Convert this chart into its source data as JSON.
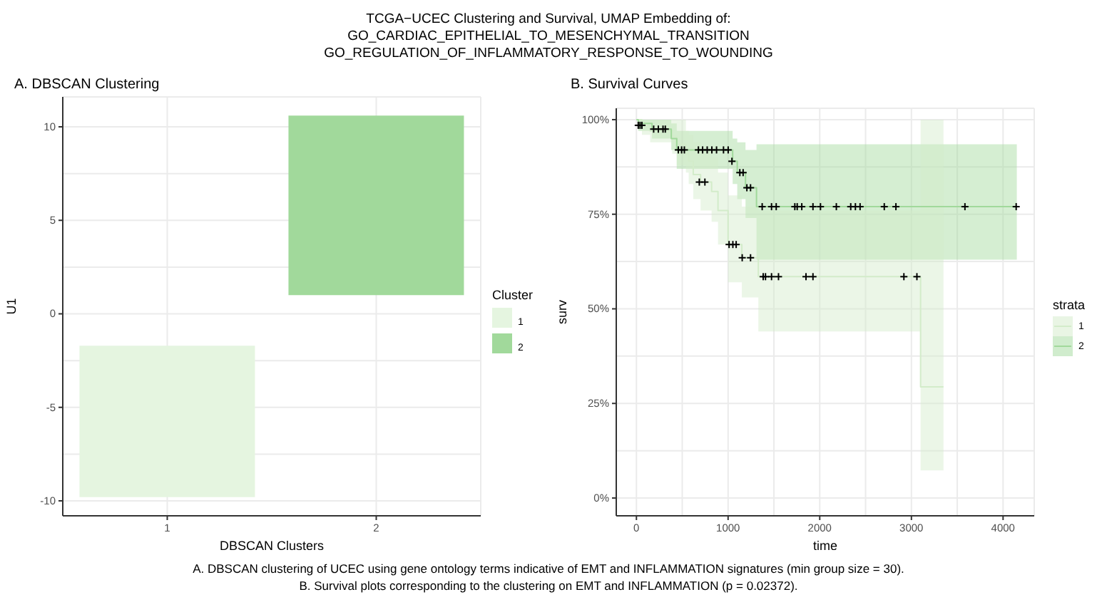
{
  "chart_data": [
    {
      "type": "bar",
      "title": "TCGA−UCEC Clustering and Survival, UMAP Embedding of:\nGO_CARDIAC_EPITHELIAL_TO_MESENCHYMAL_TRANSITION\nGO_REGULATION_OF_INFLAMMATORY_RESPONSE_TO_WOUNDING",
      "subtitle": "A. DBSCAN Clustering",
      "xlabel": "DBSCAN Clusters",
      "ylabel": "U1",
      "legend_title": "Cluster",
      "legend": "right",
      "grid": true,
      "annotations": [
        "A. DBSCAN clustering of UCEC using gene ontology terms indicative of EMT and INFLAMMATION signatures (min group size = 30).",
        "B. Survival plots corresponding to the clustering on EMT and INFLAMMATION (p = 0.02372)."
      ],
      "categories": [
        "1",
        "2"
      ],
      "series": [
        {
          "name": "1",
          "color": "#e5f5e0",
          "base": [
            -9.8,
            null
          ],
          "values": [
            8.1,
            null
          ]
        },
        {
          "name": "2",
          "color": "#a1d99b",
          "base": [
            null,
            1.0
          ],
          "values": [
            null,
            9.6
          ]
        }
      ],
      "ylim": [
        -10.8,
        11.6
      ],
      "yticks": [
        -10,
        {
          "value": -7.5,
          "label": null
        },
        -5,
        {
          "value": -2.5,
          "label": null
        },
        0,
        {
          "value": 2.5,
          "label": null
        },
        5,
        {
          "value": 7.5,
          "label": null
        },
        10
      ]
    },
    {
      "type": "step",
      "title": "B. Survival Curves",
      "xlabel": "time",
      "ylabel": "surv",
      "legend_title": "strata",
      "legend": "right",
      "grid": true,
      "xlim": [
        -220,
        4340
      ],
      "xticks": [
        0,
        {
          "value": 500,
          "label": null
        },
        1000,
        {
          "value": 1500,
          "label": null
        },
        2000,
        {
          "value": 2500,
          "label": null
        },
        3000,
        {
          "value": 3500,
          "label": null
        },
        4000
      ],
      "ylim": [
        -0.047,
        1.03
      ],
      "yticks": [
        {
          "value": 0,
          "label": "0%"
        },
        {
          "value": 0.125,
          "label": null
        },
        {
          "value": 0.25,
          "label": "25%"
        },
        {
          "value": 0.375,
          "label": null
        },
        {
          "value": 0.5,
          "label": "50%"
        },
        {
          "value": 0.625,
          "label": null
        },
        {
          "value": 0.75,
          "label": "75%"
        },
        {
          "value": 0.875,
          "label": null
        },
        {
          "value": 1,
          "label": "100%"
        }
      ],
      "series": [
        {
          "name": "1",
          "color": "#d3ecca",
          "x": [
            0,
            60,
            150,
            390,
            440,
            540,
            570,
            620,
            700,
            820,
            890,
            1000,
            1150,
            1330,
            3100,
            3350
          ],
          "values": [
            1.0,
            0.985,
            0.97,
            0.955,
            0.935,
            0.91,
            0.89,
            0.855,
            0.835,
            0.81,
            0.76,
            0.67,
            0.635,
            0.585,
            0.294,
            0.294
          ],
          "lower": [
            1.0,
            0.96,
            0.94,
            0.91,
            0.88,
            0.86,
            0.83,
            0.79,
            0.76,
            0.73,
            0.67,
            0.57,
            0.53,
            0.44,
            0.073,
            0.073
          ],
          "upper": [
            1.0,
            1.0,
            1.0,
            1.0,
            1.0,
            0.97,
            0.96,
            0.94,
            0.92,
            0.9,
            0.86,
            0.8,
            0.77,
            0.76,
            1.0,
            1.0
          ]
        },
        {
          "name": "2",
          "color": "#a1d99b",
          "x": [
            0,
            20,
            170,
            380,
            440,
            1050,
            1100,
            1190,
            1310,
            4150
          ],
          "values": [
            1.0,
            0.99,
            0.975,
            0.95,
            0.92,
            0.89,
            0.86,
            0.82,
            0.77,
            0.77
          ],
          "lower": [
            1.0,
            0.97,
            0.95,
            0.92,
            0.87,
            0.83,
            0.79,
            0.74,
            0.63,
            0.63
          ],
          "upper": [
            1.0,
            1.0,
            1.0,
            0.99,
            0.97,
            0.95,
            0.94,
            0.92,
            0.935,
            0.935
          ]
        },
        {
          "type": "scatter",
          "color": "#000000",
          "marker": "cross",
          "x": [
            20,
            40,
            60,
            188,
            239,
            290,
            315,
            457,
            493,
            523,
            676,
            722,
            772,
            823,
            874,
            950,
            1001,
            686,
            747,
            1011,
            1052,
            1088,
            1042,
            1128,
            1164,
            1205,
            1245,
            1154,
            1245,
            1372,
            1474,
            1525,
            1728,
            1754,
            1804,
            1926,
            2008,
            2181,
            2338,
            2389,
            2440,
            2704,
            2831,
            3584,
            4143,
            1383,
            1408,
            1474,
            1550,
            1850,
            1926,
            2918,
            3060
          ],
          "values": [
            0.985,
            0.985,
            0.985,
            0.975,
            0.975,
            0.975,
            0.975,
            0.92,
            0.92,
            0.92,
            0.92,
            0.92,
            0.92,
            0.92,
            0.92,
            0.92,
            0.92,
            0.835,
            0.835,
            0.67,
            0.67,
            0.67,
            0.89,
            0.86,
            0.86,
            0.82,
            0.82,
            0.635,
            0.635,
            0.77,
            0.77,
            0.77,
            0.77,
            0.77,
            0.77,
            0.77,
            0.77,
            0.77,
            0.77,
            0.77,
            0.77,
            0.77,
            0.77,
            0.77,
            0.77,
            0.585,
            0.585,
            0.585,
            0.585,
            0.585,
            0.585,
            0.585,
            0.585
          ]
        }
      ]
    }
  ]
}
